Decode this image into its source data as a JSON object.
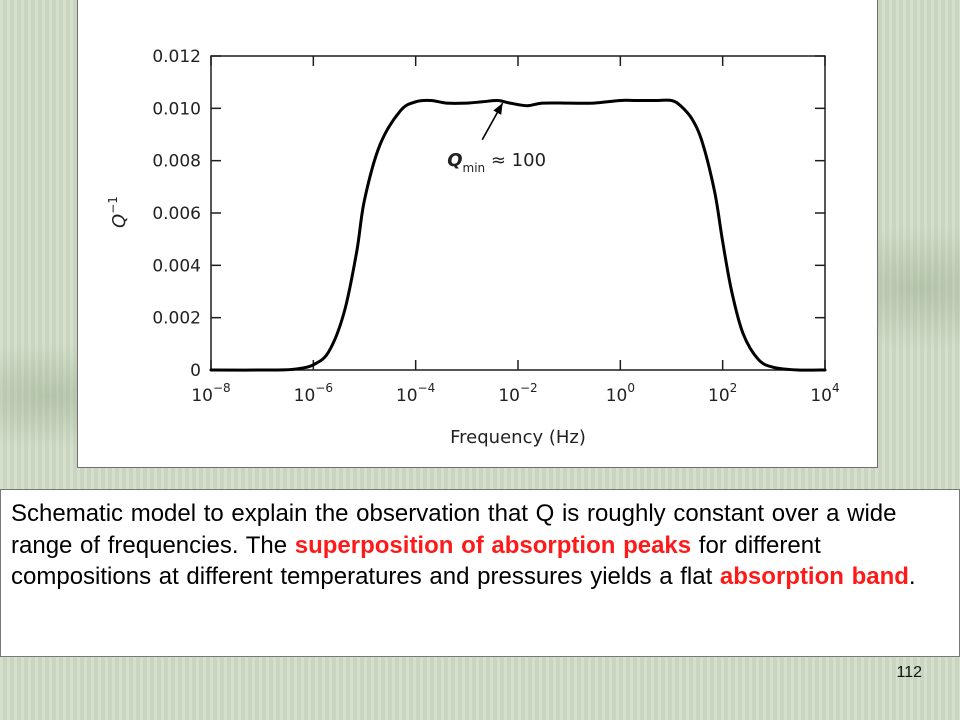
{
  "chart_data": {
    "type": "line",
    "title": "",
    "xlabel": "Frequency (Hz)",
    "ylabel_base": "Q",
    "ylabel_exp": "−1",
    "x_scale": "log",
    "xlim": [
      1e-08,
      10000.0
    ],
    "ylim": [
      0,
      0.012
    ],
    "x_ticks": [
      {
        "value": 1e-08,
        "base": "10",
        "exp": "−8"
      },
      {
        "value": 1e-06,
        "base": "10",
        "exp": "−6"
      },
      {
        "value": 0.0001,
        "base": "10",
        "exp": "−4"
      },
      {
        "value": 0.01,
        "base": "10",
        "exp": "−2"
      },
      {
        "value": 1,
        "base": "10",
        "exp": "0"
      },
      {
        "value": 100.0,
        "base": "10",
        "exp": "2"
      },
      {
        "value": 10000.0,
        "base": "10",
        "exp": "4"
      }
    ],
    "y_ticks": [
      {
        "value": 0,
        "label": "0"
      },
      {
        "value": 0.002,
        "label": "0.002"
      },
      {
        "value": 0.004,
        "label": "0.004"
      },
      {
        "value": 0.006,
        "label": "0.006"
      },
      {
        "value": 0.008,
        "label": "0.008"
      },
      {
        "value": 0.01,
        "label": "0.010"
      },
      {
        "value": 0.012,
        "label": "0.012"
      }
    ],
    "series": [
      {
        "x": [
          1e-08,
          2e-07,
          5e-07,
          1e-06,
          2e-06,
          4e-06,
          7e-06,
          1e-05,
          2e-05,
          5e-05,
          0.0001,
          0.0002,
          0.0004,
          0.001,
          0.002,
          0.004,
          0.007,
          0.015,
          0.03,
          0.1,
          0.3,
          1,
          2,
          5,
          10,
          15,
          25,
          40,
          70,
          100,
          150,
          250,
          500,
          1000,
          3000,
          10000.0
        ],
        "y": [
          0,
          0,
          5e-05,
          0.0002,
          0.0007,
          0.0022,
          0.0045,
          0.0065,
          0.0086,
          0.0099,
          0.01025,
          0.0103,
          0.0102,
          0.0102,
          0.01025,
          0.0103,
          0.0102,
          0.0101,
          0.0102,
          0.0102,
          0.0102,
          0.0103,
          0.0103,
          0.0103,
          0.0103,
          0.0101,
          0.0096,
          0.0087,
          0.0068,
          0.0049,
          0.003,
          0.0014,
          0.0004,
          0.0001,
          0,
          0
        ],
        "color": "#000000"
      }
    ],
    "annotation": {
      "base": "Q",
      "subscript": "min",
      "rest": " ≈ 100",
      "arrow_to": {
        "x": 0.005,
        "y": 0.0102
      },
      "arrow_from": {
        "x": 0.002,
        "y": 0.0088
      },
      "text_at": {
        "x": 0.0025,
        "y": 0.0081
      }
    }
  },
  "caption": {
    "part1": "Schematic model to explain the observation that Q is roughly constant over a wide range of frequencies. The ",
    "highlight1": "superposition of absorption peaks",
    "part2": " for different compositions at different temperatures and pressures yields a flat ",
    "highlight2": "absorption band",
    "part3": "."
  },
  "slide_number": "112",
  "colors": {
    "highlight": "#ff1a1a",
    "background": "#cfdcc6",
    "curve": "#000000"
  }
}
